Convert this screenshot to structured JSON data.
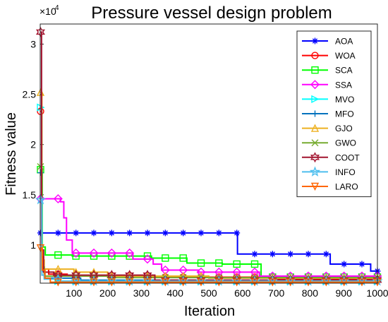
{
  "chart_data": {
    "type": "line",
    "title": "Pressure vessel design problem",
    "xlabel": "Iteration",
    "ylabel": "Fitness value",
    "y_exponent_label": "×10",
    "y_exponent_power": "4",
    "xlim": [
      0,
      1000
    ],
    "ylim": [
      6200,
      32000
    ],
    "x_ticks": [
      100,
      200,
      300,
      400,
      500,
      600,
      700,
      800,
      900,
      1000
    ],
    "y_ticks": [
      10000,
      15000,
      20000,
      25000,
      30000
    ],
    "y_tick_labels": [
      "1",
      "1.5",
      "2",
      "2.5",
      "3"
    ],
    "legend_position": "top-right",
    "marker_x": [
      0,
      53,
      106,
      159,
      212,
      265,
      318,
      371,
      424,
      477,
      530,
      583,
      636,
      689,
      742,
      795,
      848,
      901,
      954,
      1000
    ],
    "series": [
      {
        "name": "AOA",
        "color": "#0000ff",
        "marker": "asterisk",
        "points": [
          [
            1,
            11200
          ],
          [
            585,
            11200
          ],
          [
            585,
            9100
          ],
          [
            860,
            9100
          ],
          [
            860,
            8100
          ],
          [
            980,
            8100
          ],
          [
            980,
            7400
          ],
          [
            1000,
            7400
          ]
        ]
      },
      {
        "name": "WOA",
        "color": "#ff0000",
        "marker": "circle",
        "points": [
          [
            1,
            23300
          ],
          [
            5,
            23300
          ],
          [
            5,
            8800
          ],
          [
            10,
            8800
          ],
          [
            10,
            7600
          ],
          [
            25,
            7600
          ],
          [
            25,
            7100
          ],
          [
            80,
            7100
          ],
          [
            80,
            6950
          ],
          [
            320,
            6950
          ],
          [
            320,
            6800
          ],
          [
            700,
            6800
          ],
          [
            700,
            6600
          ],
          [
            1000,
            6600
          ]
        ]
      },
      {
        "name": "SCA",
        "color": "#00ff00",
        "marker": "square",
        "points": [
          [
            1,
            17500
          ],
          [
            6,
            17500
          ],
          [
            6,
            9800
          ],
          [
            15,
            9800
          ],
          [
            15,
            9000
          ],
          [
            95,
            9000
          ],
          [
            95,
            8900
          ],
          [
            330,
            8900
          ],
          [
            330,
            8700
          ],
          [
            435,
            8700
          ],
          [
            435,
            8200
          ],
          [
            540,
            8200
          ],
          [
            540,
            8100
          ],
          [
            655,
            8100
          ],
          [
            655,
            6800
          ],
          [
            1000,
            6800
          ]
        ]
      },
      {
        "name": "SSA",
        "color": "#ff00ff",
        "marker": "diamond",
        "points": [
          [
            1,
            14600
          ],
          [
            60,
            14600
          ],
          [
            60,
            14300
          ],
          [
            70,
            14300
          ],
          [
            70,
            12700
          ],
          [
            78,
            12700
          ],
          [
            78,
            10500
          ],
          [
            95,
            10500
          ],
          [
            95,
            9200
          ],
          [
            275,
            9200
          ],
          [
            275,
            8600
          ],
          [
            335,
            8600
          ],
          [
            335,
            8100
          ],
          [
            360,
            8100
          ],
          [
            360,
            7500
          ],
          [
            470,
            7500
          ],
          [
            470,
            7300
          ],
          [
            650,
            7300
          ],
          [
            650,
            6900
          ],
          [
            1000,
            6900
          ]
        ]
      },
      {
        "name": "MVO",
        "color": "#00ffff",
        "marker": "triangle-right",
        "points": [
          [
            1,
            23700
          ],
          [
            5,
            23700
          ],
          [
            5,
            7500
          ],
          [
            12,
            7500
          ],
          [
            12,
            6700
          ],
          [
            50,
            6700
          ],
          [
            50,
            6400
          ],
          [
            1000,
            6400
          ]
        ]
      },
      {
        "name": "MFO",
        "color": "#0072bd",
        "marker": "plus",
        "points": [
          [
            1,
            17200
          ],
          [
            5,
            17200
          ],
          [
            5,
            7400
          ],
          [
            14,
            7400
          ],
          [
            14,
            6700
          ],
          [
            120,
            6700
          ],
          [
            120,
            6500
          ],
          [
            1000,
            6500
          ]
        ]
      },
      {
        "name": "GJO",
        "color": "#edb120",
        "marker": "triangle-up",
        "points": [
          [
            1,
            25200
          ],
          [
            5,
            25200
          ],
          [
            5,
            8500
          ],
          [
            12,
            8500
          ],
          [
            12,
            7600
          ],
          [
            100,
            7600
          ],
          [
            100,
            7300
          ],
          [
            200,
            7300
          ],
          [
            200,
            6900
          ],
          [
            500,
            6900
          ],
          [
            500,
            6700
          ],
          [
            1000,
            6700
          ]
        ]
      },
      {
        "name": "GWO",
        "color": "#77ac30",
        "marker": "x",
        "points": [
          [
            1,
            17800
          ],
          [
            5,
            17800
          ],
          [
            5,
            7800
          ],
          [
            12,
            7800
          ],
          [
            12,
            6900
          ],
          [
            200,
            6900
          ],
          [
            200,
            6750
          ],
          [
            1000,
            6750
          ]
        ]
      },
      {
        "name": "COOT",
        "color": "#a2142f",
        "marker": "hexagram",
        "points": [
          [
            1,
            31200
          ],
          [
            4,
            31200
          ],
          [
            4,
            9500
          ],
          [
            10,
            9500
          ],
          [
            10,
            7300
          ],
          [
            40,
            7300
          ],
          [
            40,
            7000
          ],
          [
            340,
            7000
          ],
          [
            340,
            6500
          ],
          [
            1000,
            6500
          ]
        ]
      },
      {
        "name": "INFO",
        "color": "#4dbeee",
        "marker": "pentagram",
        "points": [
          [
            1,
            14500
          ],
          [
            5,
            14500
          ],
          [
            5,
            7000
          ],
          [
            12,
            7000
          ],
          [
            12,
            6600
          ],
          [
            60,
            6600
          ],
          [
            60,
            6400
          ],
          [
            1000,
            6400
          ]
        ]
      },
      {
        "name": "LARO",
        "color": "#ff6600",
        "marker": "triangle-down",
        "points": [
          [
            1,
            9700
          ],
          [
            6,
            9700
          ],
          [
            6,
            7500
          ],
          [
            14,
            7500
          ],
          [
            14,
            6700
          ],
          [
            30,
            6700
          ],
          [
            30,
            6300
          ],
          [
            1000,
            6300
          ]
        ]
      }
    ]
  }
}
